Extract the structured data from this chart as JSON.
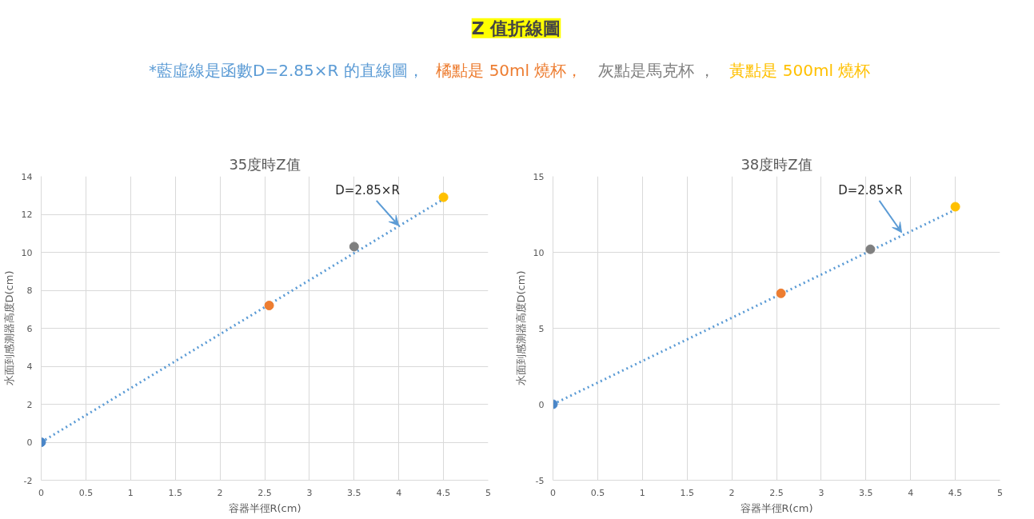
{
  "chart_data": [
    {
      "type": "other",
      "title": "Z 值折線圖",
      "annotations": [
        "*藍虛線是函數D=2.85×R 的直線圖，",
        "橘點是 50ml 燒杯，",
        "灰點是馬克杯 ，",
        "黃點是 500ml 燒杯"
      ]
    },
    {
      "type": "scatter",
      "title": "35度時Z值",
      "xlabel": "容器半徑R(cm)",
      "ylabel": "水面到感測器高度D(cm)",
      "xlim": [
        0,
        5
      ],
      "ylim": [
        -2,
        14
      ],
      "xticks": [
        0,
        0.5,
        1,
        1.5,
        2,
        2.5,
        3,
        3.5,
        4,
        4.5,
        5
      ],
      "yticks": [
        -2,
        0,
        2,
        4,
        6,
        8,
        10,
        12,
        14
      ],
      "grid": true,
      "marker": "circle",
      "annotations": [
        {
          "text": "D=2.85×R",
          "x": 4,
          "y": 11.4
        }
      ],
      "series": [
        {
          "type": "line",
          "line_style": "dotted",
          "marker": "none",
          "color": "#5b9bd5",
          "x": [
            0,
            4.5
          ],
          "values": [
            0,
            12.8
          ]
        },
        {
          "color": "#ed7d31",
          "x": [
            2.55
          ],
          "values": [
            7.2
          ]
        },
        {
          "color": "#7f7f7f",
          "x": [
            3.5
          ],
          "values": [
            10.3
          ]
        },
        {
          "color": "#ffc000",
          "x": [
            4.5
          ],
          "values": [
            12.9
          ]
        },
        {
          "color": "#4a86c8",
          "x": [
            0
          ],
          "values": [
            0
          ]
        }
      ]
    },
    {
      "type": "scatter",
      "title": "38度時Z值",
      "xlabel": "容器半徑R(cm)",
      "ylabel": "水面到感測器高度D(cm)",
      "xlim": [
        0,
        5
      ],
      "ylim": [
        -5,
        15
      ],
      "xticks": [
        0,
        0.5,
        1,
        1.5,
        2,
        2.5,
        3,
        3.5,
        4,
        4.5,
        5
      ],
      "yticks": [
        -5,
        0,
        5,
        10,
        15
      ],
      "grid": true,
      "marker": "circle",
      "annotations": [
        {
          "text": "D=2.85×R",
          "x": 3.9,
          "y": 11.3
        }
      ],
      "series": [
        {
          "type": "line",
          "line_style": "dotted",
          "marker": "none",
          "color": "#5b9bd5",
          "x": [
            0,
            4.5
          ],
          "values": [
            0,
            12.8
          ]
        },
        {
          "color": "#ed7d31",
          "x": [
            2.55
          ],
          "values": [
            7.3
          ]
        },
        {
          "color": "#7f7f7f",
          "x": [
            3.55
          ],
          "values": [
            10.2
          ]
        },
        {
          "color": "#ffc000",
          "x": [
            4.5
          ],
          "values": [
            13.0
          ]
        },
        {
          "color": "#4a86c8",
          "x": [
            0
          ],
          "values": [
            0
          ]
        }
      ]
    }
  ]
}
